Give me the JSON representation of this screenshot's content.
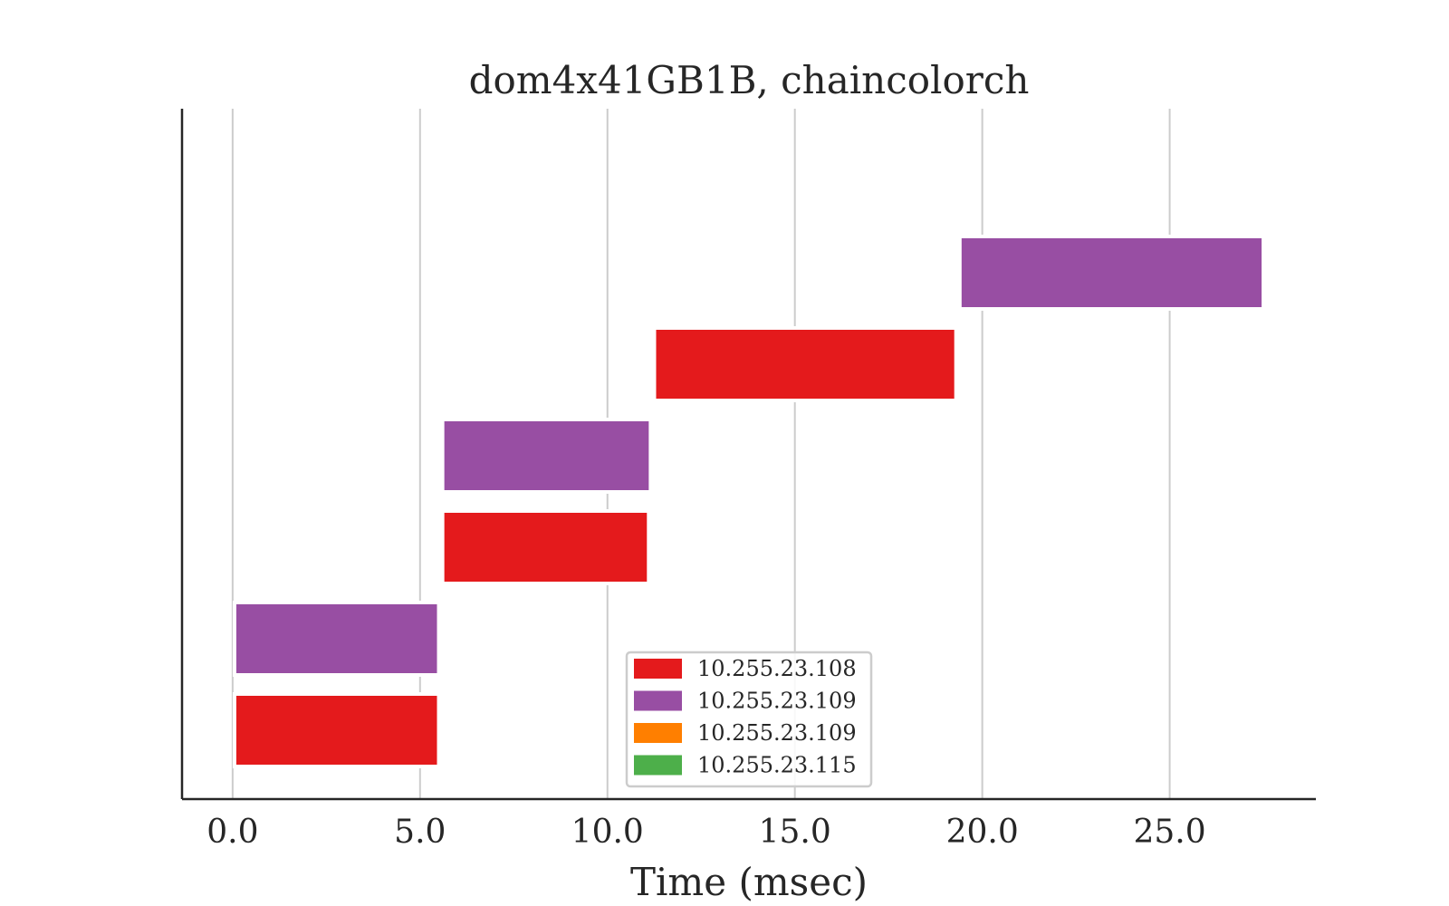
{
  "chart_data": {
    "type": "bar",
    "orientation": "horizontal-gantt",
    "title": "dom4x41GB1B, chaincolorch",
    "xlabel": "Time (msec)",
    "ylabel": "",
    "xlim": [
      -1.35,
      28.9
    ],
    "x_ticks": [
      0.0,
      5.0,
      10.0,
      15.0,
      20.0,
      25.0
    ],
    "x_tick_labels": [
      "0.0",
      "5.0",
      "10.0",
      "15.0",
      "20.0",
      "25.0"
    ],
    "grid": "vertical",
    "legend_placement": "bottom-center",
    "rows": 7,
    "bars": [
      {
        "row": 0,
        "start": 0.05,
        "end": 5.5,
        "series": 0
      },
      {
        "row": 1,
        "start": 0.05,
        "end": 5.5,
        "series": 1
      },
      {
        "row": 2,
        "start": 5.6,
        "end": 11.1,
        "series": 0
      },
      {
        "row": 3,
        "start": 5.6,
        "end": 11.15,
        "series": 1
      },
      {
        "row": 4,
        "start": 11.25,
        "end": 19.3,
        "series": 0
      },
      {
        "row": 5,
        "start": 19.4,
        "end": 27.5,
        "series": 1
      }
    ],
    "series": [
      {
        "name": "10.255.23.108",
        "color": "#e41a1c"
      },
      {
        "name": "10.255.23.109",
        "color": "#984ea3"
      },
      {
        "name": "10.255.23.109",
        "color": "#ff7f00"
      },
      {
        "name": "10.255.23.115",
        "color": "#4daf4a"
      }
    ]
  }
}
